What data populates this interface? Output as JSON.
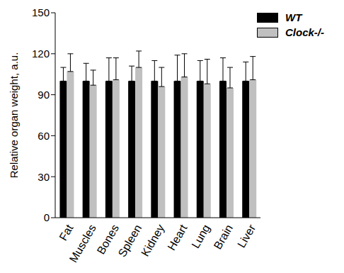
{
  "chart_data": {
    "type": "bar",
    "categories": [
      "Fat",
      "Muscles",
      "Bones",
      "Spleen",
      "Kidney",
      "Heart",
      "Lung",
      "Brain",
      "Liver"
    ],
    "series": [
      {
        "name": "WT",
        "color": "#000000",
        "values": [
          100,
          100,
          100,
          100,
          100,
          100,
          100,
          100,
          100
        ],
        "errors": [
          10,
          13,
          17,
          11,
          15,
          19,
          15,
          17,
          14
        ]
      },
      {
        "name": "Clock-/-",
        "color": "#c0c0c0",
        "values": [
          107,
          97,
          101,
          110,
          96,
          103,
          98,
          95,
          101
        ],
        "errors": [
          13,
          11,
          16,
          12,
          14,
          17,
          18,
          15,
          17
        ]
      }
    ],
    "ylabel": "Relative organ weight, a.u.",
    "ylim": [
      0,
      150
    ],
    "yticks": [
      0,
      30,
      60,
      90,
      120,
      150
    ],
    "grid": false,
    "legend": "upper right"
  }
}
